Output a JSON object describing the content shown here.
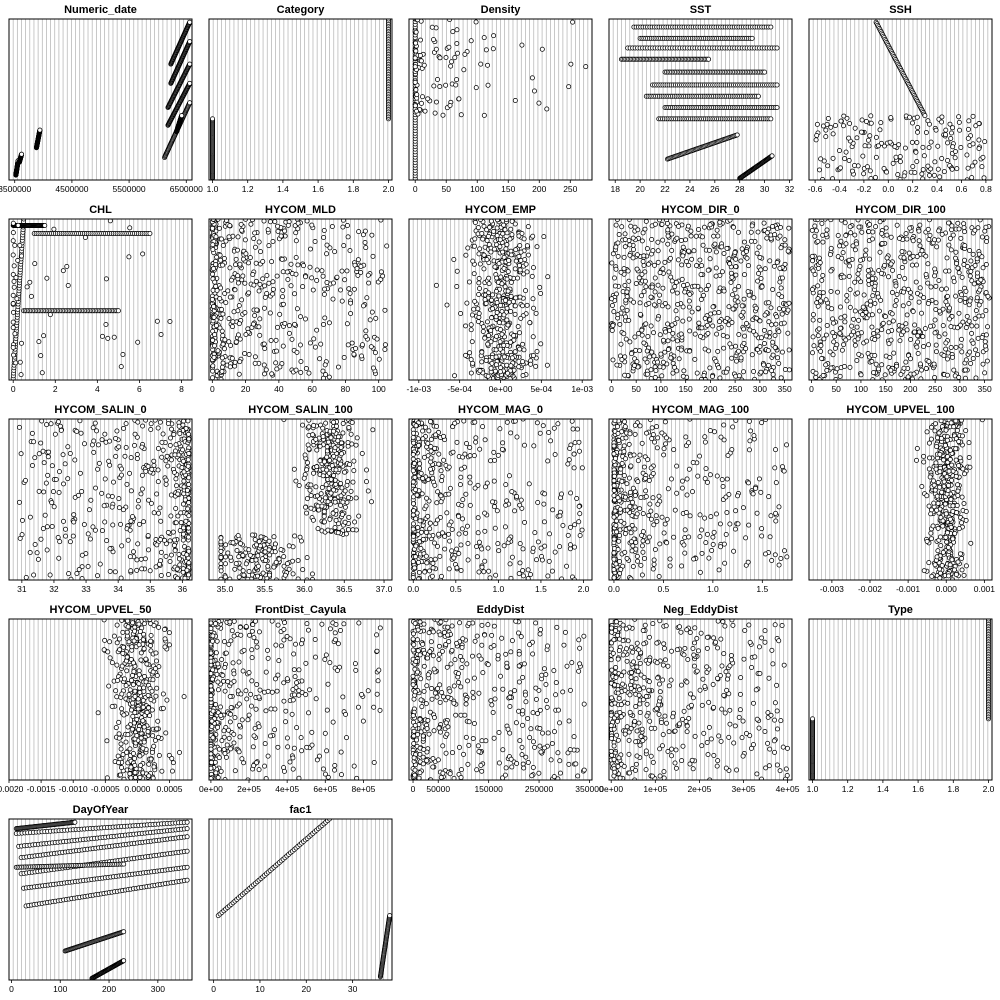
{
  "chart_data": [
    {
      "type": "scatter",
      "title": "Numeric_date",
      "xlim": [
        3400000,
        6600000
      ],
      "ticks": [
        "3500000",
        "4500000",
        "5500000",
        "6500000"
      ],
      "tick_values": [
        3500000,
        4500000,
        5500000,
        6500000
      ],
      "grid": "vertical",
      "segments": [
        [
          3520000,
          3560000,
          0.97,
          0.88
        ],
        [
          3580000,
          3620000,
          0.89,
          0.84
        ],
        [
          3880000,
          3940000,
          0.8,
          0.69
        ],
        [
          6230000,
          6560000,
          0.28,
          0.02
        ],
        [
          6230000,
          6560000,
          0.4,
          0.14
        ],
        [
          6180000,
          6560000,
          0.55,
          0.28
        ],
        [
          6180000,
          6560000,
          0.66,
          0.4
        ],
        [
          6120000,
          6560000,
          0.86,
          0.52
        ],
        [
          6330000,
          6420000,
          0.7,
          0.6
        ]
      ]
    },
    {
      "type": "scatter",
      "title": "Category",
      "xlim": [
        0.98,
        2.02
      ],
      "ticks": [
        "1.0",
        "1.2",
        "1.4",
        "1.6",
        "1.8",
        "2.0"
      ],
      "tick_values": [
        1.0,
        1.2,
        1.4,
        1.6,
        1.8,
        2.0
      ],
      "grid": "vertical",
      "segments": [
        [
          1.0,
          1.0,
          0.99,
          0.62
        ],
        [
          2.0,
          2.0,
          0.62,
          0.0
        ]
      ]
    },
    {
      "type": "scatter",
      "title": "Density",
      "xlim": [
        -10,
        285
      ],
      "ticks": [
        "0",
        "50",
        "100",
        "150",
        "200",
        "250"
      ],
      "tick_values": [
        0,
        50,
        100,
        150,
        200,
        250
      ],
      "grid": "vertical",
      "segments": [
        [
          0,
          0,
          0.99,
          0.0
        ]
      ],
      "spread": {
        "range": [
          0,
          280
        ],
        "band": [
          0.0,
          0.6
        ],
        "n": 120,
        "skew": 4
      }
    },
    {
      "type": "scatter",
      "title": "SST",
      "xlim": [
        17.5,
        32.2
      ],
      "ticks": [
        "18",
        "20",
        "22",
        "24",
        "26",
        "28",
        "30",
        "32"
      ],
      "tick_values": [
        18,
        20,
        22,
        24,
        26,
        28,
        30,
        32
      ],
      "grid": "vertical",
      "segments": [
        [
          22.2,
          27.8,
          0.87,
          0.72
        ],
        [
          28.0,
          30.6,
          0.99,
          0.85
        ],
        [
          18.5,
          25.5,
          0.25,
          0.25
        ],
        [
          19.5,
          30.5,
          0.05,
          0.05
        ],
        [
          20.0,
          29.0,
          0.12,
          0.12
        ],
        [
          19.0,
          31.0,
          0.18,
          0.18
        ],
        [
          22.0,
          30.0,
          0.33,
          0.33
        ],
        [
          21.0,
          31.0,
          0.41,
          0.41
        ],
        [
          20.5,
          29.5,
          0.48,
          0.48
        ],
        [
          22.0,
          31.0,
          0.55,
          0.55
        ],
        [
          21.5,
          30.5,
          0.62,
          0.62
        ]
      ]
    },
    {
      "type": "scatter",
      "title": "SSH",
      "xlim": [
        -0.65,
        0.85
      ],
      "ticks": [
        "-0.6",
        "-0.4",
        "-0.2",
        "0.0",
        "0.2",
        "0.4",
        "0.6",
        "0.8"
      ],
      "tick_values": [
        -0.6,
        -0.4,
        -0.2,
        0.0,
        0.2,
        0.4,
        0.6,
        0.8
      ],
      "grid": "vertical",
      "segments": [
        [
          -0.1,
          0.3,
          0.02,
          0.6
        ]
      ],
      "spread": {
        "range": [
          -0.6,
          0.8
        ],
        "band": [
          0.6,
          1.0
        ],
        "n": 180,
        "skew": 1
      }
    },
    {
      "type": "scatter",
      "title": "CHL",
      "xlim": [
        -0.2,
        8.5
      ],
      "ticks": [
        "0",
        "2",
        "4",
        "6",
        "8"
      ],
      "tick_values": [
        0,
        2,
        4,
        6,
        8
      ],
      "grid": "vertical",
      "segments": [
        [
          0,
          0.5,
          0.99,
          0.0
        ],
        [
          1.0,
          6.5,
          0.09,
          0.09
        ],
        [
          0.5,
          5.0,
          0.57,
          0.57
        ],
        [
          0,
          1.5,
          0.04,
          0.04
        ]
      ],
      "spread": {
        "range": [
          0,
          8.2
        ],
        "band": [
          0.0,
          1.0
        ],
        "n": 60,
        "skew": 5
      }
    },
    {
      "type": "scatter",
      "title": "HYCOM_MLD",
      "xlim": [
        -2,
        108
      ],
      "ticks": [
        "0",
        "20",
        "40",
        "60",
        "80",
        "100"
      ],
      "tick_values": [
        0,
        20,
        40,
        60,
        80,
        100
      ],
      "grid": "vertical",
      "spread": {
        "range": [
          0,
          105
        ],
        "band": [
          0.0,
          1.0
        ],
        "n": 520,
        "skew": 2.3
      }
    },
    {
      "type": "scatter",
      "title": "HYCOM_EMP",
      "xlim": [
        -0.00112,
        0.00112
      ],
      "ticks": [
        "-1e-03",
        "-5e-04",
        "0e+00",
        "5e-04",
        "1e-03"
      ],
      "tick_values": [
        -0.001,
        -0.0005,
        0,
        0.0005,
        0.001
      ],
      "grid": "vertical",
      "spread": {
        "range": [
          -0.00105,
          0.00105
        ],
        "band": [
          0.0,
          1.0
        ],
        "n": 480,
        "center": 2e-05,
        "sd": 0.0002
      }
    },
    {
      "type": "scatter",
      "title": "HYCOM_DIR_0",
      "xlim": [
        -5,
        365
      ],
      "ticks": [
        "0",
        "50",
        "100",
        "150",
        "200",
        "250",
        "300",
        "350"
      ],
      "tick_values": [
        0,
        50,
        100,
        150,
        200,
        250,
        300,
        350
      ],
      "grid": "vertical",
      "spread": {
        "range": [
          0,
          360
        ],
        "band": [
          0.0,
          1.0
        ],
        "n": 650,
        "skew": 0
      }
    },
    {
      "type": "scatter",
      "title": "HYCOM_DIR_100",
      "xlim": [
        -5,
        365
      ],
      "ticks": [
        "0",
        "50",
        "100",
        "150",
        "200",
        "250",
        "300",
        "350"
      ],
      "tick_values": [
        0,
        50,
        100,
        150,
        200,
        250,
        300,
        350
      ],
      "grid": "vertical",
      "spread": {
        "range": [
          0,
          360
        ],
        "band": [
          0.0,
          1.0
        ],
        "n": 650,
        "skew": 0
      }
    },
    {
      "type": "scatter",
      "title": "HYCOM_SALIN_0",
      "xlim": [
        30.6,
        36.3
      ],
      "ticks": [
        "31",
        "32",
        "33",
        "34",
        "35",
        "36"
      ],
      "tick_values": [
        31,
        32,
        33,
        34,
        35,
        36
      ],
      "grid": "vertical",
      "spread": {
        "range": [
          30.8,
          36.2
        ],
        "band": [
          0.0,
          1.0
        ],
        "n": 480,
        "skew": -2.5
      }
    },
    {
      "type": "scatter",
      "title": "HYCOM_SALIN_100",
      "xlim": [
        34.8,
        37.1
      ],
      "ticks": [
        "35.0",
        "35.5",
        "36.0",
        "36.5",
        "37.0"
      ],
      "tick_values": [
        35.0,
        35.5,
        36.0,
        36.5,
        37.0
      ],
      "grid": "vertical",
      "spread": {
        "range": [
          35.0,
          37.0
        ],
        "band": [
          0.0,
          0.72
        ],
        "n": 300,
        "center": 36.35,
        "sd": 0.18
      },
      "spread2": {
        "range": [
          34.95,
          36.1
        ],
        "band": [
          0.72,
          1.0
        ],
        "n": 160,
        "center": 35.4,
        "sd": 0.3
      }
    },
    {
      "type": "scatter",
      "title": "HYCOM_MAG_0",
      "xlim": [
        -0.05,
        2.1
      ],
      "ticks": [
        "0.0",
        "0.5",
        "1.0",
        "1.5",
        "2.0"
      ],
      "tick_values": [
        0.0,
        0.5,
        1.0,
        1.5,
        2.0
      ],
      "grid": "vertical",
      "spread": {
        "range": [
          0,
          2.0
        ],
        "band": [
          0.0,
          1.0
        ],
        "n": 480,
        "skew": 2.5
      }
    },
    {
      "type": "scatter",
      "title": "HYCOM_MAG_100",
      "xlim": [
        -0.05,
        1.8
      ],
      "ticks": [
        "0.0",
        "0.5",
        "1.0",
        "1.5"
      ],
      "tick_values": [
        0.0,
        0.5,
        1.0,
        1.5
      ],
      "grid": "vertical",
      "spread": {
        "range": [
          0,
          1.75
        ],
        "band": [
          0.0,
          1.0
        ],
        "n": 480,
        "skew": 3
      }
    },
    {
      "type": "scatter",
      "title": "HYCOM_UPVEL_100",
      "xlim": [
        -0.0036,
        0.0012
      ],
      "ticks": [
        "-0.003",
        "-0.002",
        "-0.001",
        "0.000",
        "0.001"
      ],
      "tick_values": [
        -0.003,
        -0.002,
        -0.001,
        0.0,
        0.001
      ],
      "grid": "vertical",
      "spread": {
        "range": [
          -0.0034,
          0.0011
        ],
        "band": [
          0.0,
          1.0
        ],
        "n": 420,
        "center": 0.0,
        "sd": 0.00025
      }
    },
    {
      "type": "scatter",
      "title": "HYCOM_UPVEL_50",
      "xlim": [
        -0.002,
        0.00085
      ],
      "ticks": [
        "-0.0020",
        "-0.0015",
        "-0.0010",
        "-0.0005",
        "0.0000",
        "0.0005"
      ],
      "tick_values": [
        -0.002,
        -0.0015,
        -0.001,
        -0.0005,
        0.0,
        0.0005
      ],
      "grid": "vertical",
      "spread": {
        "range": [
          -0.0019,
          0.0008
        ],
        "band": [
          0.0,
          1.0
        ],
        "n": 420,
        "center": 0.0,
        "sd": 0.00022
      }
    },
    {
      "type": "scatter",
      "title": "FrontDist_Cayula",
      "xlim": [
        -10000,
        950000
      ],
      "ticks": [
        "0e+00",
        "2e+05",
        "4e+05",
        "6e+05",
        "8e+05"
      ],
      "tick_values": [
        0,
        200000,
        400000,
        600000,
        800000
      ],
      "grid": "vertical",
      "spread": {
        "range": [
          0,
          900000
        ],
        "band": [
          0.0,
          1.0
        ],
        "n": 480,
        "skew": 4
      }
    },
    {
      "type": "scatter",
      "title": "EddyDist",
      "xlim": [
        -8000,
        355000
      ],
      "ticks": [
        "0",
        "50000",
        "150000",
        "250000",
        "350000"
      ],
      "tick_values": [
        0,
        50000,
        150000,
        250000,
        350000
      ],
      "grid": "vertical",
      "spread": {
        "range": [
          0,
          340000
        ],
        "band": [
          0.0,
          1.0
        ],
        "n": 480,
        "skew": 2
      }
    },
    {
      "type": "scatter",
      "title": "Neg_EddyDist",
      "xlim": [
        -5000,
        410000
      ],
      "ticks": [
        "0e+00",
        "1e+05",
        "2e+05",
        "3e+05",
        "4e+05"
      ],
      "tick_values": [
        0,
        100000,
        200000,
        300000,
        400000
      ],
      "grid": "vertical",
      "spread": {
        "range": [
          0,
          400000
        ],
        "band": [
          0.0,
          1.0
        ],
        "n": 480,
        "skew": 2
      }
    },
    {
      "type": "scatter",
      "title": "Type",
      "xlim": [
        0.98,
        2.02
      ],
      "ticks": [
        "1.0",
        "1.2",
        "1.4",
        "1.6",
        "1.8",
        "2.0"
      ],
      "tick_values": [
        1.0,
        1.2,
        1.4,
        1.6,
        1.8,
        2.0
      ],
      "grid": "vertical",
      "segments": [
        [
          1.0,
          1.0,
          0.99,
          0.62
        ],
        [
          2.0,
          2.0,
          0.62,
          0.0
        ]
      ]
    },
    {
      "type": "scatter",
      "title": "DayOfYear",
      "xlim": [
        -5,
        370
      ],
      "ticks": [
        "0",
        "100",
        "200",
        "300"
      ],
      "tick_values": [
        0,
        100,
        200,
        300
      ],
      "grid": "vertical",
      "segments": [
        [
          10,
          360,
          0.09,
          0.02
        ],
        [
          15,
          360,
          0.17,
          0.06
        ],
        [
          20,
          360,
          0.24,
          0.11
        ],
        [
          20,
          360,
          0.34,
          0.2
        ],
        [
          25,
          360,
          0.43,
          0.3
        ],
        [
          30,
          360,
          0.54,
          0.38
        ],
        [
          110,
          230,
          0.82,
          0.7
        ],
        [
          165,
          230,
          0.99,
          0.88
        ],
        [
          10,
          130,
          0.06,
          0.02
        ],
        [
          10,
          230,
          0.3,
          0.28
        ]
      ]
    },
    {
      "type": "scatter",
      "title": "fac1",
      "xlim": [
        -1,
        38.5
      ],
      "ticks": [
        "0",
        "10",
        "20",
        "30"
      ],
      "tick_values": [
        0,
        10,
        20,
        30
      ],
      "grid": "vertical",
      "segments": [
        [
          1,
          25,
          0.6,
          0.0
        ],
        [
          36,
          38,
          0.98,
          0.6
        ]
      ]
    }
  ]
}
